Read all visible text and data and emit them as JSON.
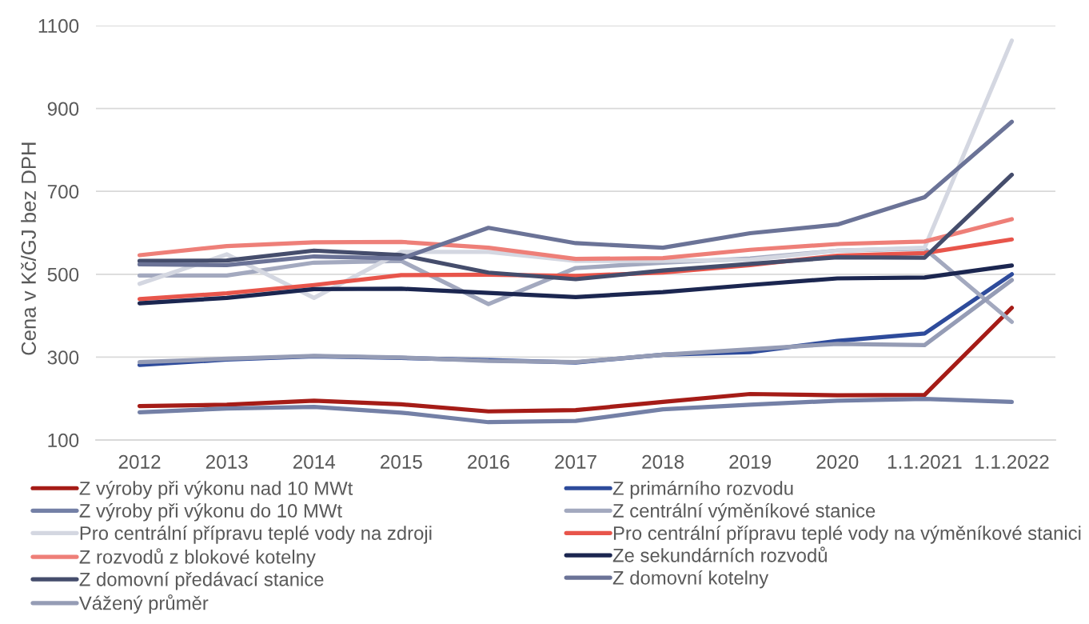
{
  "chart_data": {
    "type": "line",
    "ylabel": "Cena v Kč/GJ bez DPH",
    "categories": [
      "2012",
      "2013",
      "2014",
      "2015",
      "2016",
      "2017",
      "2018",
      "2019",
      "2020",
      "1.1.2021",
      "1.1.2022"
    ],
    "ylim": [
      100,
      1100
    ],
    "yticks": [
      100,
      300,
      500,
      700,
      900,
      1100
    ],
    "grid": "y",
    "legend": "bottom",
    "marker": "none",
    "line_style": "solid",
    "series": [
      {
        "name": "Z výroby při výkonu nad 10 MWt",
        "color": "#a51c17",
        "values": [
          182,
          185,
          195,
          186,
          169,
          172,
          192,
          211,
          208,
          209,
          419
        ]
      },
      {
        "name": "Z primárního rozvodu",
        "color": "#2e4b9b",
        "values": [
          281,
          294,
          302,
          298,
          293,
          287,
          306,
          312,
          339,
          357,
          500
        ]
      },
      {
        "name": "Z výroby při výkonu do 10 MWt",
        "color": "#7480a6",
        "values": [
          167,
          176,
          180,
          166,
          143,
          146,
          174,
          185,
          195,
          199,
          192
        ]
      },
      {
        "name": "Z centrální výměníkové stanice",
        "color": "#a3a9bf",
        "values": [
          497,
          497,
          528,
          532,
          428,
          515,
          528,
          538,
          557,
          562,
          385
        ]
      },
      {
        "name": "Pro centrální přípravu teplé vody na zdroji",
        "color": "#d4d7e1",
        "values": [
          477,
          548,
          443,
          554,
          554,
          532,
          532,
          535,
          557,
          564,
          1064
        ]
      },
      {
        "name": "Pro centrální přípravu teplé vody na výměníkové stanici",
        "color": "#e8554b",
        "values": [
          440,
          454,
          474,
          498,
          499,
          496,
          504,
          522,
          545,
          551,
          584
        ]
      },
      {
        "name": "Z rozvodů z blokové kotelny",
        "color": "#ee7f78",
        "values": [
          546,
          568,
          577,
          578,
          564,
          537,
          539,
          559,
          573,
          579,
          633
        ]
      },
      {
        "name": "Ze sekundárních rozvodů",
        "color": "#1b2650",
        "values": [
          430,
          443,
          464,
          465,
          455,
          445,
          457,
          474,
          490,
          492,
          521
        ]
      },
      {
        "name": "Z domovní předávací stanice",
        "color": "#454d6c",
        "values": [
          532,
          533,
          557,
          546,
          504,
          488,
          509,
          525,
          541,
          540,
          740
        ]
      },
      {
        "name": "Z domovní kotelny",
        "color": "#6b7397",
        "values": [
          524,
          522,
          543,
          538,
          612,
          575,
          564,
          599,
          620,
          686,
          868
        ]
      },
      {
        "name": "Vážený průměr",
        "color": "#959cb5",
        "values": [
          288,
          296,
          303,
          299,
          291,
          288,
          306,
          319,
          332,
          329,
          486
        ]
      }
    ]
  }
}
